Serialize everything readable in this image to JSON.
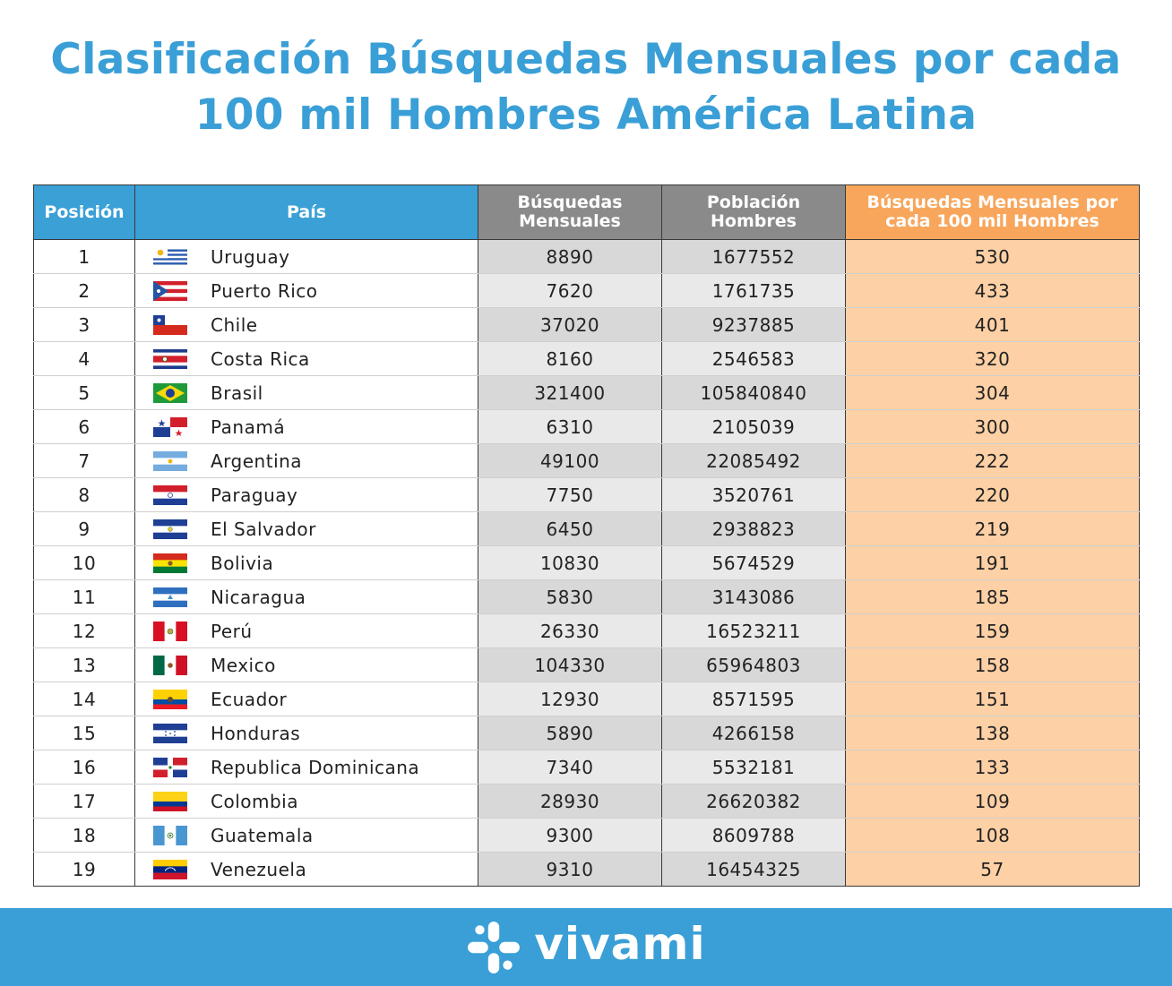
{
  "header": {
    "title_line1": "Clasificación Búsquedas Mensuales por cada",
    "title_line2": "100 mil Hombres América Latina"
  },
  "footer": {
    "brand": "vivami"
  },
  "colors": {
    "title": "#3a9fd6",
    "header_blue": "#3aa0d6",
    "header_gray": "#8a8a8a",
    "header_orange": "#f7a65c",
    "col_orange": "#fdd0a5",
    "footer": "#3a9fd6"
  },
  "chart_data": {
    "type": "table",
    "columns": [
      "Posición",
      "País",
      "Búsquedas Mensuales",
      "Población Hombres",
      "Búsquedas Mensuales por cada 100 mil Hombres"
    ],
    "rows": [
      {
        "pos": "1",
        "country": "Uruguay",
        "flag": "uruguay-flag-icon",
        "searches": "8890",
        "population": "1677552",
        "per100k": "530"
      },
      {
        "pos": "2",
        "country": "Puerto Rico",
        "flag": "puerto-rico-flag-icon",
        "searches": "7620",
        "population": "1761735",
        "per100k": "433"
      },
      {
        "pos": "3",
        "country": "Chile",
        "flag": "chile-flag-icon",
        "searches": "37020",
        "population": "9237885",
        "per100k": "401"
      },
      {
        "pos": "4",
        "country": "Costa Rica",
        "flag": "costa-rica-flag-icon",
        "searches": "8160",
        "population": "2546583",
        "per100k": "320"
      },
      {
        "pos": "5",
        "country": "Brasil",
        "flag": "brasil-flag-icon",
        "searches": "321400",
        "population": "105840840",
        "per100k": "304"
      },
      {
        "pos": "6",
        "country": "Panamá",
        "flag": "panama-flag-icon",
        "searches": "6310",
        "population": "2105039",
        "per100k": "300"
      },
      {
        "pos": "7",
        "country": "Argentina",
        "flag": "argentina-flag-icon",
        "searches": "49100",
        "population": "22085492",
        "per100k": "222"
      },
      {
        "pos": "8",
        "country": "Paraguay",
        "flag": "paraguay-flag-icon",
        "searches": "7750",
        "population": "3520761",
        "per100k": "220"
      },
      {
        "pos": "9",
        "country": "El Salvador",
        "flag": "el-salvador-flag-icon",
        "searches": "6450",
        "population": "2938823",
        "per100k": "219"
      },
      {
        "pos": "10",
        "country": "Bolivia",
        "flag": "bolivia-flag-icon",
        "searches": "10830",
        "population": "5674529",
        "per100k": "191"
      },
      {
        "pos": "11",
        "country": "Nicaragua",
        "flag": "nicaragua-flag-icon",
        "searches": "5830",
        "population": "3143086",
        "per100k": "185"
      },
      {
        "pos": "12",
        "country": "Perú",
        "flag": "peru-flag-icon",
        "searches": "26330",
        "population": "16523211",
        "per100k": "159"
      },
      {
        "pos": "13",
        "country": "Mexico",
        "flag": "mexico-flag-icon",
        "searches": "104330",
        "population": "65964803",
        "per100k": "158"
      },
      {
        "pos": "14",
        "country": "Ecuador",
        "flag": "ecuador-flag-icon",
        "searches": "12930",
        "population": "8571595",
        "per100k": "151"
      },
      {
        "pos": "15",
        "country": "Honduras",
        "flag": "honduras-flag-icon",
        "searches": "5890",
        "population": "4266158",
        "per100k": "138"
      },
      {
        "pos": "16",
        "country": "Republica Dominicana",
        "flag": "dominican-republic-flag-icon",
        "searches": "7340",
        "population": "5532181",
        "per100k": "133"
      },
      {
        "pos": "17",
        "country": "Colombia",
        "flag": "colombia-flag-icon",
        "searches": "28930",
        "population": "26620382",
        "per100k": "109"
      },
      {
        "pos": "18",
        "country": "Guatemala",
        "flag": "guatemala-flag-icon",
        "searches": "9300",
        "population": "8609788",
        "per100k": "108"
      },
      {
        "pos": "19",
        "country": "Venezuela",
        "flag": "venezuela-flag-icon",
        "searches": "9310",
        "population": "16454325",
        "per100k": "57"
      }
    ]
  }
}
